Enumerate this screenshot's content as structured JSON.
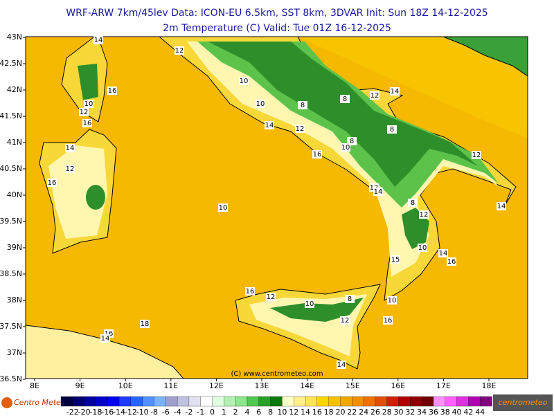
{
  "header": {
    "line1": "WRF-ARW 7km/45lev   Data: ICON-EU 6.5km, SST 8km, 3DVAR   Init: Sun 18Z 14-12-2025",
    "line2": "2m Temperature (C)  Valid: Tue 01Z 16-12-2025"
  },
  "map": {
    "lon_labels": [
      "8E",
      "9E",
      "10E",
      "11E",
      "12E",
      "13E",
      "14E",
      "15E",
      "16E",
      "17E",
      "18E"
    ],
    "lat_labels": [
      "43N",
      "42.5N",
      "42N",
      "41.5N",
      "41N",
      "40.5N",
      "40N",
      "39.5N",
      "39N",
      "38.5N",
      "38N",
      "37.5N",
      "37N",
      "36.5N"
    ],
    "contour_labels": [
      "14",
      "12",
      "16",
      "10",
      "12",
      "16",
      "14",
      "12",
      "16",
      "10",
      "10",
      "10",
      "8",
      "14",
      "12",
      "12",
      "8",
      "14",
      "8",
      "10",
      "16",
      "8",
      "12",
      "14",
      "12",
      "14",
      "8",
      "12",
      "10",
      "14",
      "16",
      "15",
      "10",
      "16",
      "12",
      "10",
      "8",
      "12",
      "16",
      "16",
      "14",
      "18",
      "14"
    ],
    "copyright": "(C) www.centrometeo.com"
  },
  "colorbar": {
    "labels": [
      "-22",
      "-20",
      "-18",
      "-16",
      "-14",
      "-12",
      "-10",
      "-8",
      "-6",
      "-4",
      "-2",
      "-1",
      "0",
      "1",
      "2",
      "4",
      "6",
      "8",
      "10",
      "12",
      "14",
      "16",
      "18",
      "20",
      "22",
      "24",
      "26",
      "28",
      "30",
      "32",
      "34",
      "36",
      "38",
      "40",
      "42",
      "44"
    ],
    "colors": [
      "#000040",
      "#000070",
      "#0000a0",
      "#0000c8",
      "#0000f0",
      "#1e3cff",
      "#2864ff",
      "#5090ff",
      "#78b4ff",
      "#a0a0d0",
      "#c0c0e0",
      "#e0e0f0",
      "#ffffff",
      "#e0ffe0",
      "#b4f0b4",
      "#8ce68c",
      "#50c850",
      "#28a028",
      "#0a780a",
      "#ffffc8",
      "#fff08c",
      "#ffe650",
      "#ffd700",
      "#f8c000",
      "#f0a800",
      "#f09000",
      "#f07000",
      "#e05000",
      "#d02000",
      "#b00000",
      "#900000",
      "#700000",
      "#ff90ff",
      "#ff60ff",
      "#e030e0",
      "#b000b0",
      "#800080"
    ]
  },
  "logos": {
    "left": "Centro Meteo Aq",
    "right": "centrometeo"
  }
}
